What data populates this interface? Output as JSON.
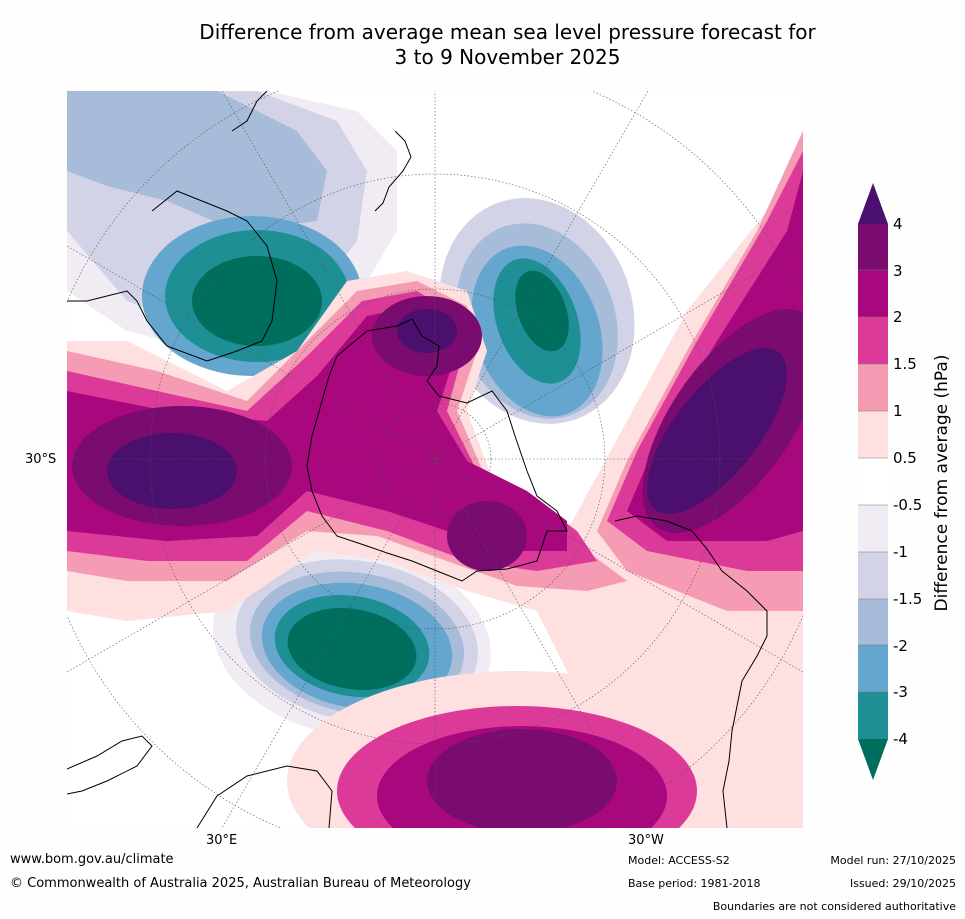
{
  "title": {
    "line1": "Difference from average mean sea level pressure forecast for",
    "line2": "3 to 9 November 2025"
  },
  "map": {
    "lat_label": "30°S",
    "lon_label_east": "30°E",
    "lon_label_west": "30°W"
  },
  "legend": {
    "title": "Difference from average (hPa)",
    "ticks": [
      "4",
      "3",
      "2",
      "1.5",
      "1",
      "0.5",
      "-0.5",
      "-1",
      "-1.5",
      "-2",
      "-3",
      "-4"
    ],
    "colors": {
      "gt4": "#4b0f6e",
      "3to4": "#7a0b6f",
      "2to3": "#a8077e",
      "1.5to2": "#db3a99",
      "1to1.5": "#f59bb4",
      "0.5to1": "#fde0df",
      "neutral": "#ffffff",
      "m0.5tom1": "#f1ebf3",
      "m1tom1.5": "#d2d3e7",
      "m1.5tom2": "#a7bcd9",
      "m2tom3": "#64a6ce",
      "m3tom4": "#1d8f95",
      "ltm4": "#006e5c"
    }
  },
  "footer": {
    "url": "www.bom.gov.au/climate",
    "copyright": "© Commonwealth of Australia 2025, Australian Bureau of Meteorology",
    "model": "Model: ACCESS-S2",
    "base_period": "Base period: 1981-2018",
    "model_run": "Model run: 27/10/2025",
    "issued": "Issued: 29/10/2025",
    "disclaimer": "Boundaries are not considered authoritative"
  }
}
